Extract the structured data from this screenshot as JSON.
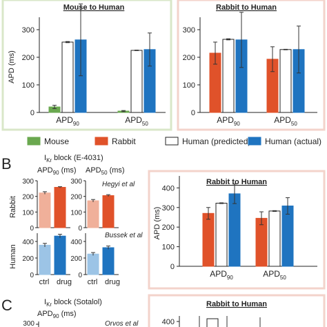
{
  "colors": {
    "mouse": "#6aa84f",
    "mouse_light": "#a9d18e",
    "rabbit": "#e0522a",
    "rabbit_light": "#f0b09a",
    "human_predicted": "#ffffff",
    "human_actual": "#1f74c0",
    "human_light": "#9cc4e6",
    "panel_green": "#d9e7c8",
    "panel_pink": "#f3d3cb"
  },
  "legend": {
    "items": [
      {
        "label": "Mouse",
        "color": "#6aa84f"
      },
      {
        "label": "Rabbit",
        "color": "#e0522a"
      },
      {
        "label": "Human (predicted)",
        "color": "#ffffff"
      },
      {
        "label": "Human (actual)",
        "color": "#1f74c0"
      }
    ]
  },
  "panel_b": {
    "letter": "B",
    "title_main": "I",
    "title_sub": "Kr",
    "title_rest": " block (E-4031)",
    "col1_main": "APD",
    "col1_sub": "90",
    "col1_unit": " (ms)",
    "col2_main": "APD",
    "col2_sub": "50",
    "col2_unit": " (ms)",
    "row1_label": "Rabbit",
    "row2_label": "Human",
    "ref_top": "Hegyi et al",
    "ref_bottom": "Bussek et al",
    "xtick_ctrl": "ctrl",
    "xtick_drug": "drug"
  },
  "panel_c": {
    "letter": "C",
    "title_main": "I",
    "title_sub": "Kr",
    "title_rest": " block (Sotalol)",
    "col1_main": "APD",
    "col1_sub": "90",
    "col1_unit": " (ms)",
    "ref_top": "Orvos et al"
  },
  "chart_data": [
    {
      "id": "mouse-to-human",
      "type": "bar",
      "title": "Mouse to Human",
      "ylabel": "APD (ms)",
      "ylim": [
        0,
        330
      ],
      "yticks": [
        0,
        100,
        200,
        300
      ],
      "categories": [
        {
          "main": "APD",
          "sub": "90"
        },
        {
          "main": "APD",
          "sub": "50"
        }
      ],
      "series": [
        {
          "name": "Mouse",
          "values": [
            20,
            5
          ],
          "err": [
            6,
            2
          ]
        },
        {
          "name": "Human (predicted)",
          "values": [
            255,
            225
          ],
          "err": [
            2,
            1
          ]
        },
        {
          "name": "Human (actual)",
          "values": [
            263,
            228
          ],
          "err": [
            130,
            60
          ]
        }
      ]
    },
    {
      "id": "rabbit-to-human-a",
      "type": "bar",
      "title": "Rabbit to Human",
      "ylim": [
        0,
        330
      ],
      "yticks": [
        0,
        100,
        200,
        300
      ],
      "categories": [
        {
          "main": "APD",
          "sub": "90"
        },
        {
          "main": "APD",
          "sub": "50"
        }
      ],
      "series": [
        {
          "name": "Rabbit",
          "values": [
            215,
            193
          ],
          "err": [
            40,
            45
          ]
        },
        {
          "name": "Human (predicted)",
          "values": [
            265,
            228
          ],
          "err": [
            2,
            1
          ]
        },
        {
          "name": "Human (actual)",
          "values": [
            263,
            228
          ],
          "err": [
            100,
            85
          ]
        }
      ]
    },
    {
      "id": "e4031-rabbit-apd90",
      "type": "bar",
      "ylim": [
        0,
        300
      ],
      "yticks": [
        0,
        100,
        200,
        300
      ],
      "categories": [
        "ctrl",
        "drug"
      ],
      "values": [
        222,
        258
      ],
      "err": [
        8,
        4
      ]
    },
    {
      "id": "e4031-rabbit-apd50",
      "type": "bar",
      "ylim": [
        0,
        300
      ],
      "yticks": [
        0,
        100,
        200,
        300
      ],
      "categories": [
        "ctrl",
        "drug"
      ],
      "values": [
        172,
        205
      ],
      "err": [
        8,
        6
      ]
    },
    {
      "id": "e4031-human-apd90",
      "type": "bar",
      "ylim": [
        0,
        500
      ],
      "yticks": [
        0,
        200,
        400
      ],
      "categories": [
        "ctrl",
        "drug"
      ],
      "values": [
        355,
        465
      ],
      "err": [
        22,
        22
      ]
    },
    {
      "id": "e4031-human-apd50",
      "type": "bar",
      "ylim": [
        0,
        500
      ],
      "yticks": [
        0,
        200,
        400
      ],
      "categories": [
        "ctrl",
        "drug"
      ],
      "values": [
        248,
        325
      ],
      "err": [
        18,
        20
      ]
    },
    {
      "id": "e4031-rabbit-to-human",
      "type": "bar",
      "title": "Rabbit to Human",
      "ylabel": "APD (ms)",
      "ylim": [
        0,
        440
      ],
      "yticks": [
        0,
        100,
        200,
        300,
        400
      ],
      "categories": [
        {
          "main": "APD",
          "sub": "90"
        },
        {
          "main": "APD",
          "sub": "50"
        }
      ],
      "series": [
        {
          "name": "Rabbit",
          "values": [
            270,
            245
          ],
          "err": [
            30,
            33
          ]
        },
        {
          "name": "Human (predicted)",
          "values": [
            322,
            282
          ],
          "err": [
            2,
            2
          ]
        },
        {
          "name": "Human (actual)",
          "values": [
            370,
            308
          ],
          "err": [
            50,
            42
          ]
        }
      ]
    },
    {
      "id": "sotalol-rabbit-to-human",
      "type": "bar",
      "title": "Rabbit to Human",
      "yticks": [
        400
      ]
    }
  ]
}
